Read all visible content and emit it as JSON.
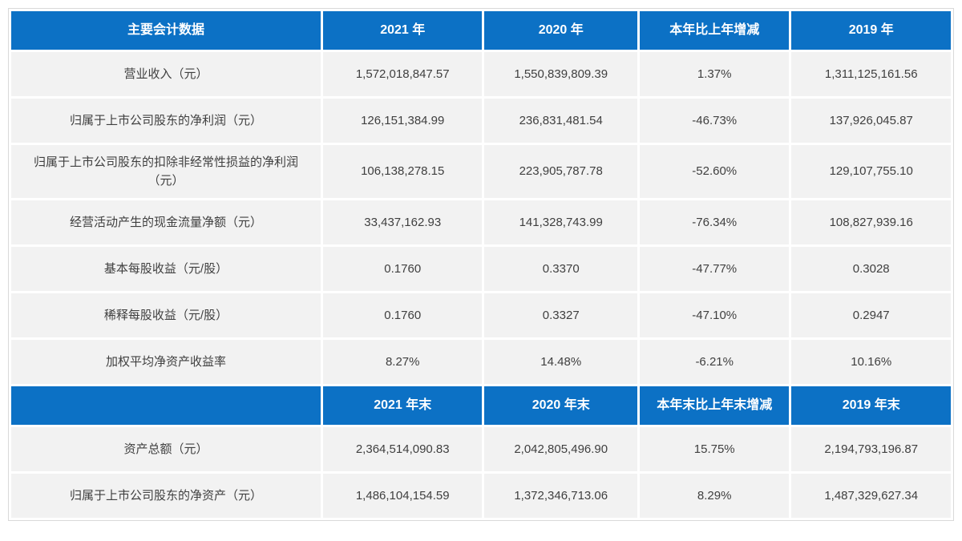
{
  "colors": {
    "header_blue": "#0c71c5",
    "row_bg": "#f2f2f2",
    "header_text": "#ffffff",
    "body_text": "#3f3f3f",
    "border": "#d9d9d9"
  },
  "s1": {
    "headers": [
      "主要会计数据",
      "2021 年",
      "2020 年",
      "本年比上年增减",
      "2019 年"
    ],
    "rows": [
      [
        "营业收入（元）",
        "1,572,018,847.57",
        "1,550,839,809.39",
        "1.37%",
        "1,311,125,161.56"
      ],
      [
        "归属于上市公司股东的净利润（元）",
        "126,151,384.99",
        "236,831,481.54",
        "-46.73%",
        "137,926,045.87"
      ],
      [
        "归属于上市公司股东的扣除非经常性损益的净利润（元）",
        "106,138,278.15",
        "223,905,787.78",
        "-52.60%",
        "129,107,755.10"
      ],
      [
        "经营活动产生的现金流量净额（元）",
        "33,437,162.93",
        "141,328,743.99",
        "-76.34%",
        "108,827,939.16"
      ],
      [
        "基本每股收益（元/股）",
        "0.1760",
        "0.3370",
        "-47.77%",
        "0.3028"
      ],
      [
        "稀释每股收益（元/股）",
        "0.1760",
        "0.3327",
        "-47.10%",
        "0.2947"
      ],
      [
        "加权平均净资产收益率",
        "8.27%",
        "14.48%",
        "-6.21%",
        "10.16%"
      ]
    ]
  },
  "s2": {
    "headers": [
      "",
      "2021 年末",
      "2020 年末",
      "本年末比上年末增减",
      "2019 年末"
    ],
    "rows": [
      [
        "资产总额（元）",
        "2,364,514,090.83",
        "2,042,805,496.90",
        "15.75%",
        "2,194,793,196.87"
      ],
      [
        "归属于上市公司股东的净资产（元）",
        "1,486,104,154.59",
        "1,372,346,713.06",
        "8.29%",
        "1,487,329,627.34"
      ]
    ]
  }
}
